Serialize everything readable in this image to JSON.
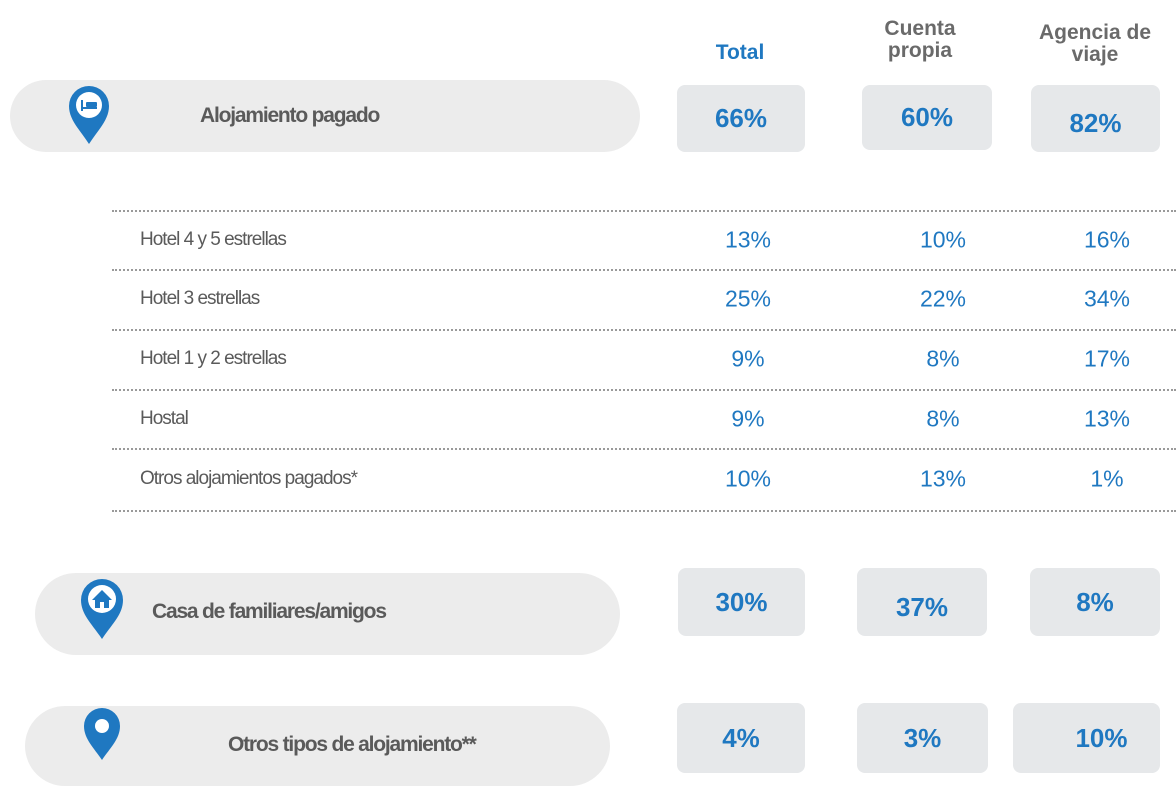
{
  "columns": [
    "Total",
    "Cuenta propia",
    "Agencia de viaje"
  ],
  "sections": [
    {
      "label": "Alojamiento pagado",
      "values": [
        "66%",
        "60%",
        "82%"
      ],
      "rows": [
        {
          "label": "Hotel 4 y 5 estrellas",
          "values": [
            "13%",
            "10%",
            "16%"
          ]
        },
        {
          "label": "Hotel 3 estrellas",
          "values": [
            "25%",
            "22%",
            "34%"
          ]
        },
        {
          "label": "Hotel 1 y 2 estrellas",
          "values": [
            "9%",
            "8%",
            "17%"
          ]
        },
        {
          "label": "Hostal",
          "values": [
            "9%",
            "8%",
            "13%"
          ]
        },
        {
          "label": "Otros alojamientos pagados*",
          "values": [
            "10%",
            "13%",
            "1%"
          ]
        }
      ]
    },
    {
      "label": "Casa de familiares/amigos",
      "values": [
        "30%",
        "37%",
        "8%"
      ]
    },
    {
      "label": "Otros tipos de alojamiento**",
      "values": [
        "4%",
        "3%",
        "10%"
      ]
    }
  ]
}
